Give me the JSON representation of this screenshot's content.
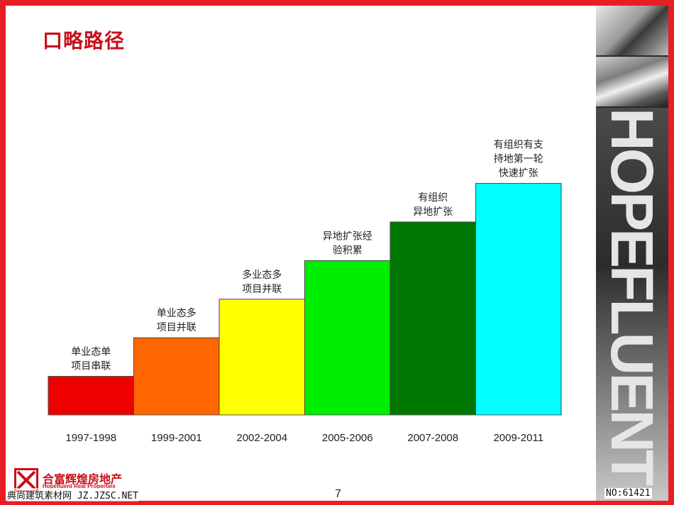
{
  "slide": {
    "title": "口略路径",
    "page_number": "7",
    "company_name": "合富辉煌房地产",
    "company_sub": "Hopefluent Real Properties",
    "brand_vertical": "HOPEFLUENT",
    "watermark_left": "典尚建筑素材网 JZ.JZSC.NET",
    "watermark_right": "NO:61421"
  },
  "chart_data": {
    "type": "bar",
    "categories": [
      "1997-1998",
      "1999-2001",
      "2002-2004",
      "2005-2006",
      "2007-2008",
      "2009-2011"
    ],
    "values": [
      1,
      2,
      3,
      4,
      5,
      6
    ],
    "bar_labels": [
      [
        "单业态单",
        "项目串联"
      ],
      [
        "单业态多",
        "项目并联"
      ],
      [
        "多业态多",
        "项目并联"
      ],
      [
        "异地扩张经",
        "验积累"
      ],
      [
        "有组织",
        "异地扩张"
      ],
      [
        "有组织有支",
        "持地第一轮",
        "快速扩张"
      ]
    ],
    "colors": [
      "#ee0000",
      "#ff6600",
      "#ffff00",
      "#00ee00",
      "#007700",
      "#00ffff"
    ],
    "title": "",
    "xlabel": "",
    "ylabel": "",
    "grid": false,
    "legend": "none"
  }
}
